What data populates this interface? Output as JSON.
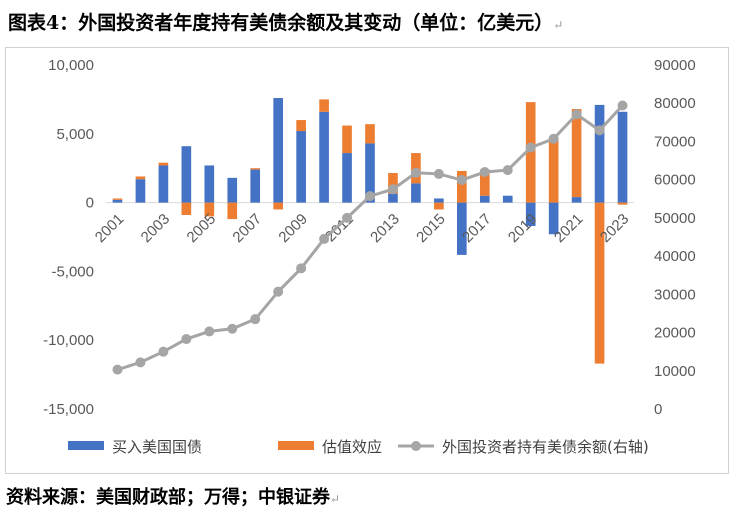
{
  "title": "图表4：外国投资者年度持有美债余额及其变动（单位：亿美元）",
  "source": "资料来源：美国财政部；万得；中银证券",
  "chart_data": {
    "type": "bar",
    "years": [
      2001,
      2002,
      2003,
      2004,
      2005,
      2006,
      2007,
      2008,
      2009,
      2010,
      2011,
      2012,
      2013,
      2014,
      2015,
      2016,
      2017,
      2018,
      2019,
      2020,
      2021,
      2022,
      2023
    ],
    "x_tick_labels": [
      "2001",
      "2003",
      "2005",
      "2007",
      "2009",
      "2011",
      "2013",
      "2015",
      "2017",
      "2019",
      "2021",
      "2023"
    ],
    "left_axis": {
      "min": -15000,
      "max": 10000,
      "step": 5000,
      "tick_labels": [
        "10,000",
        "5,000",
        "0",
        "-5,000",
        "-10,000",
        "-15,000"
      ]
    },
    "right_axis": {
      "min": 0,
      "max": 90000,
      "step": 10000,
      "tick_labels": [
        "90000",
        "80000",
        "70000",
        "60000",
        "50000",
        "40000",
        "30000",
        "20000",
        "10000",
        "0"
      ]
    },
    "series": [
      {
        "name": "买入美国国债",
        "kind": "bar",
        "axis": "left",
        "color": "#4472C4",
        "values": [
          200,
          1700,
          2700,
          4100,
          2700,
          1800,
          2400,
          7600,
          5200,
          6600,
          3600,
          4300,
          650,
          1400,
          300,
          -3800,
          500,
          500,
          -1700,
          -2300,
          400,
          7100,
          6600
        ]
      },
      {
        "name": "估值效应",
        "kind": "bar",
        "axis": "left",
        "color": "#ED7D31",
        "values": [
          100,
          200,
          200,
          -900,
          -1000,
          -1200,
          100,
          -500,
          800,
          900,
          2000,
          1400,
          1500,
          2200,
          -500,
          2300,
          1900,
          0,
          7300,
          4600,
          6400,
          -11700,
          -150
        ]
      },
      {
        "name": "外国投资者持有美债余额(右轴)",
        "kind": "line",
        "axis": "right",
        "color": "#A5A5A5",
        "values": [
          10300,
          12200,
          15000,
          18300,
          20300,
          21000,
          23500,
          30700,
          36800,
          44500,
          50000,
          55700,
          57500,
          61800,
          61500,
          59900,
          62000,
          62500,
          68400,
          70700,
          77100,
          72900,
          79400
        ]
      }
    ],
    "legend_position": "bottom"
  }
}
